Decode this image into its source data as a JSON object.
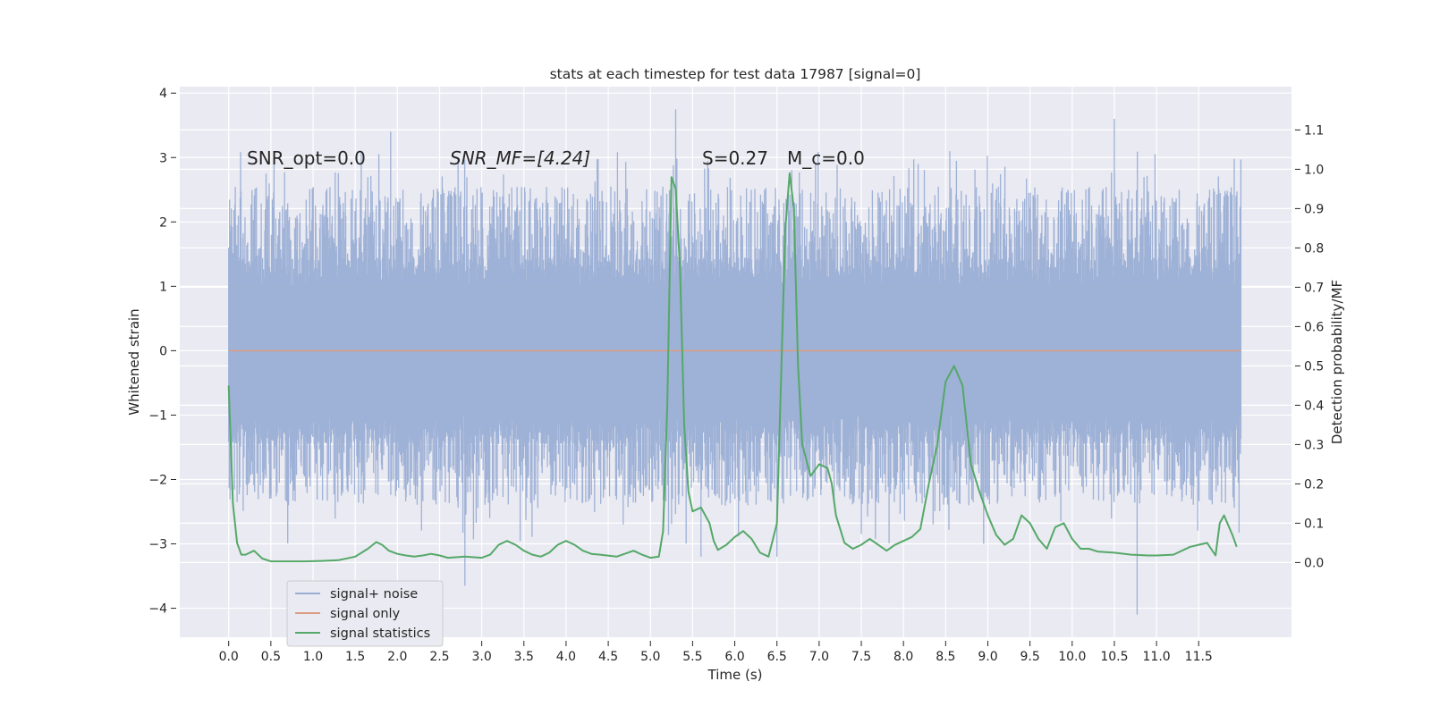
{
  "chart_data": {
    "type": "line",
    "title": "stats at each timestep for test data 17987 [signal=0]",
    "xlabel": "Time (s)",
    "ylabel": "Whitened strain",
    "y2label": "Detection probability/MF",
    "xlim": [
      -0.58,
      12.6
    ],
    "ylim": [
      -4.45,
      4.1
    ],
    "y2lim": [
      -0.19,
      1.21
    ],
    "x_ticks": [
      0.0,
      0.5,
      1.0,
      1.5,
      2.0,
      2.5,
      3.0,
      3.5,
      4.0,
      4.5,
      5.0,
      5.5,
      6.0,
      6.5,
      7.0,
      7.5,
      8.0,
      8.5,
      9.0,
      9.5,
      10.0,
      10.5,
      11.0,
      11.5
    ],
    "x_tick_labels": [
      "0.0",
      "0.5",
      "1.0",
      "1.5",
      "2.0",
      "2.5",
      "3.0",
      "3.5",
      "4.0",
      "4.5",
      "5.0",
      "5.5",
      "6.0",
      "6.5",
      "7.0",
      "7.5",
      "8.0",
      "8.5",
      "9.0",
      "9.5",
      "10.0",
      "10.5",
      "11.0",
      "11.5"
    ],
    "y_ticks": [
      -4,
      -3,
      -2,
      -1,
      0,
      1,
      2,
      3,
      4
    ],
    "y_tick_labels": [
      "−4",
      "−3",
      "−2",
      "−1",
      "0",
      "1",
      "2",
      "3",
      "4"
    ],
    "y2_ticks": [
      0.0,
      0.1,
      0.2,
      0.3,
      0.4,
      0.5,
      0.6,
      0.7,
      0.8,
      0.9,
      1.0,
      1.1
    ],
    "y2_tick_labels": [
      "0.0",
      "0.1",
      "0.2",
      "0.3",
      "0.4",
      "0.5",
      "0.6",
      "0.7",
      "0.8",
      "0.9",
      "1.0",
      "1.1"
    ],
    "grid": true,
    "legend_position": "lower-left",
    "annotations": [
      "SNR_opt=0.0",
      "SNR_MF=[4.24]",
      "S=0.27",
      "M_c=0.0"
    ],
    "series": [
      {
        "name": "signal+ noise",
        "axis": "left",
        "color": "#9aaed4",
        "style": "dense whitened noise, approx. ±1.3 core with peaks to ±3.7",
        "x_range": [
          0.0,
          12.0
        ],
        "envelope_peaks": [
          {
            "x": 0.0,
            "y": 1.6
          },
          {
            "x": 1.92,
            "y": 3.4
          },
          {
            "x": 2.8,
            "y": -3.65
          },
          {
            "x": 5.3,
            "y": 3.75
          },
          {
            "x": 5.6,
            "y": -3.2
          },
          {
            "x": 6.5,
            "y": -3.2
          },
          {
            "x": 8.95,
            "y": -3.0
          },
          {
            "x": 10.5,
            "y": 3.6
          },
          {
            "x": 10.77,
            "y": -4.1
          }
        ]
      },
      {
        "name": "signal only",
        "axis": "left",
        "color": "#dd9c80",
        "x": [
          0.0,
          12.0
        ],
        "y": [
          0.0,
          0.0
        ]
      },
      {
        "name": "signal statistics",
        "axis": "right",
        "color": "#55a868",
        "x": [
          0.0,
          0.05,
          0.1,
          0.15,
          0.2,
          0.3,
          0.4,
          0.5,
          0.7,
          0.9,
          1.1,
          1.3,
          1.5,
          1.65,
          1.75,
          1.82,
          1.9,
          2.0,
          2.1,
          2.2,
          2.3,
          2.4,
          2.5,
          2.6,
          2.8,
          3.0,
          3.1,
          3.2,
          3.3,
          3.4,
          3.5,
          3.6,
          3.7,
          3.8,
          3.9,
          4.0,
          4.1,
          4.2,
          4.3,
          4.4,
          4.6,
          4.8,
          4.9,
          5.0,
          5.1,
          5.15,
          5.2,
          5.25,
          5.3,
          5.35,
          5.4,
          5.45,
          5.5,
          5.6,
          5.7,
          5.75,
          5.8,
          5.9,
          6.0,
          6.1,
          6.2,
          6.3,
          6.4,
          6.5,
          6.6,
          6.65,
          6.7,
          6.75,
          6.8,
          6.9,
          7.0,
          7.1,
          7.15,
          7.2,
          7.3,
          7.4,
          7.5,
          7.6,
          7.7,
          7.8,
          7.9,
          8.0,
          8.1,
          8.2,
          8.3,
          8.4,
          8.5,
          8.6,
          8.7,
          8.75,
          8.8,
          8.9,
          9.0,
          9.1,
          9.2,
          9.3,
          9.4,
          9.5,
          9.6,
          9.7,
          9.8,
          9.9,
          10.0,
          10.1,
          10.2,
          10.3,
          10.5,
          10.7,
          10.9,
          11.0,
          11.2,
          11.4,
          11.5,
          11.6,
          11.7,
          11.75,
          11.8,
          11.9,
          11.95
        ],
        "y": [
          0.45,
          0.15,
          0.05,
          0.02,
          0.02,
          0.03,
          0.01,
          0.003,
          0.003,
          0.003,
          0.004,
          0.006,
          0.015,
          0.035,
          0.052,
          0.045,
          0.03,
          0.022,
          0.018,
          0.015,
          0.018,
          0.022,
          0.018,
          0.012,
          0.015,
          0.012,
          0.02,
          0.045,
          0.055,
          0.045,
          0.03,
          0.02,
          0.015,
          0.025,
          0.045,
          0.055,
          0.045,
          0.03,
          0.022,
          0.02,
          0.015,
          0.03,
          0.02,
          0.012,
          0.015,
          0.08,
          0.4,
          0.98,
          0.95,
          0.75,
          0.35,
          0.18,
          0.13,
          0.14,
          0.1,
          0.055,
          0.032,
          0.045,
          0.065,
          0.08,
          0.06,
          0.025,
          0.015,
          0.1,
          0.85,
          0.99,
          0.9,
          0.5,
          0.3,
          0.22,
          0.25,
          0.24,
          0.2,
          0.12,
          0.05,
          0.035,
          0.045,
          0.06,
          0.045,
          0.03,
          0.045,
          0.055,
          0.065,
          0.085,
          0.2,
          0.3,
          0.46,
          0.5,
          0.45,
          0.35,
          0.25,
          0.18,
          0.12,
          0.07,
          0.045,
          0.06,
          0.12,
          0.1,
          0.06,
          0.035,
          0.09,
          0.1,
          0.06,
          0.035,
          0.035,
          0.028,
          0.025,
          0.02,
          0.018,
          0.018,
          0.02,
          0.04,
          0.045,
          0.05,
          0.018,
          0.1,
          0.12,
          0.07,
          0.04
        ]
      }
    ]
  }
}
